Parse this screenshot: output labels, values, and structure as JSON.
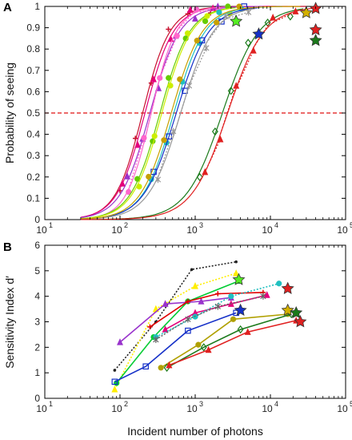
{
  "chart_data": [
    {
      "panel_label": "A",
      "type": "line",
      "xscale": "log",
      "xlim": [
        10,
        100000
      ],
      "ylim": [
        0,
        1
      ],
      "xticks": [
        "10",
        "10",
        "10",
        "10",
        "10"
      ],
      "xtick_exponents": [
        "1",
        "2",
        "3",
        "4",
        "5"
      ],
      "yticks": [
        "0",
        "0.1",
        "0.2",
        "0.3",
        "0.4",
        "0.5",
        "0.6",
        "0.7",
        "0.8",
        "0.9",
        "1"
      ],
      "xlabel": "",
      "ylabel": "Probability of seeing",
      "reference_line": {
        "y": 0.5,
        "color": "#e01010",
        "style": "dashed"
      },
      "series": [
        {
          "color": "#c8102e",
          "x50": 200,
          "slope": 2.4,
          "marker": "plus",
          "endpoint_x": 30000
        },
        {
          "color": "#e4007c",
          "x50": 215,
          "slope": 2.3,
          "marker": "triangle",
          "endpoint_x": 12000
        },
        {
          "color": "#9933cc",
          "x50": 250,
          "slope": 2.2,
          "marker": "triangle",
          "endpoint_x": 8000
        },
        {
          "color": "#ff66cc",
          "x50": 260,
          "slope": 2.6,
          "marker": "circle",
          "endpoint_x": 3000,
          "dotted": true
        },
        {
          "color": "#66cc00",
          "x50": 340,
          "slope": 2.2,
          "marker": "circle",
          "endpoint_x": 3500
        },
        {
          "color": "#ccee00",
          "x50": 360,
          "slope": 2.2,
          "marker": "circle",
          "endpoint_x": 3200
        },
        {
          "color": "#20c0c0",
          "x50": 520,
          "slope": 2.1,
          "marker": "circle",
          "endpoint_x": 15000
        },
        {
          "color": "#1530c8",
          "x50": 560,
          "slope": 2.0,
          "marker": "square",
          "endpoint_x": 7000
        },
        {
          "color": "#999999",
          "x50": 640,
          "slope": 2.0,
          "marker": "star",
          "endpoint_x": 6500,
          "dotted": true
        },
        {
          "color": "#c8a000",
          "x50": 480,
          "slope": 2.1,
          "marker": "circle",
          "endpoint_x": 25000
        },
        {
          "color": "#1b7a1b",
          "x50": 2300,
          "slope": 1.8,
          "marker": "diamond",
          "endpoint_x": 28000
        },
        {
          "color": "#e02020",
          "x50": 2700,
          "slope": 1.8,
          "marker": "triangle",
          "endpoint_x": 40000,
          "dotted": true
        }
      ],
      "endpoint_stars": [
        {
          "x": 40000,
          "y": 0.99,
          "color": "#e02020"
        },
        {
          "x": 30000,
          "y": 0.97,
          "color": "#d4b000"
        },
        {
          "x": 3500,
          "y": 0.93,
          "color": "#55ee22"
        },
        {
          "x": 7000,
          "y": 0.87,
          "color": "#1530c8"
        },
        {
          "x": 40000,
          "y": 0.89,
          "color": "#e02020"
        },
        {
          "x": 40000,
          "y": 0.84,
          "color": "#1b7a1b"
        }
      ]
    },
    {
      "panel_label": "B",
      "type": "line",
      "xscale": "log",
      "xlim": [
        10,
        100000
      ],
      "ylim": [
        0,
        6
      ],
      "xticks": [
        "10",
        "10",
        "10",
        "10",
        "10"
      ],
      "xtick_exponents": [
        "1",
        "2",
        "3",
        "4",
        "5"
      ],
      "yticks": [
        "0",
        "1",
        "2",
        "3",
        "4",
        "5",
        "6"
      ],
      "xlabel": "Incident number of photons",
      "ylabel": "Sensitivity Index d′",
      "series": [
        {
          "color": "#222222",
          "dotted": true,
          "marker": "dot",
          "x": [
            85,
            300,
            900,
            3500
          ],
          "y": [
            1.1,
            3.0,
            5.05,
            5.35
          ]
        },
        {
          "color": "#ffee00",
          "dotted": true,
          "marker": "triangle",
          "x": [
            85,
            300,
            1000,
            3500
          ],
          "y": [
            0.35,
            3.5,
            4.4,
            4.9
          ]
        },
        {
          "color": "#00cc33",
          "marker": "circle",
          "x": [
            90,
            280,
            800,
            3800
          ],
          "y": [
            0.6,
            2.4,
            3.8,
            4.6
          ]
        },
        {
          "color": "#9933cc",
          "marker": "triangle",
          "x": [
            100,
            400,
            1200,
            3000
          ],
          "y": [
            2.2,
            3.7,
            3.8,
            3.95
          ]
        },
        {
          "color": "#e00000",
          "marker": "plus",
          "x": [
            250,
            800,
            2000,
            8000
          ],
          "y": [
            2.8,
            3.8,
            4.1,
            4.15
          ]
        },
        {
          "color": "#e4007c",
          "marker": "triangle",
          "x": [
            400,
            1000,
            3000,
            9000
          ],
          "y": [
            2.7,
            3.35,
            3.7,
            4.05
          ]
        },
        {
          "color": "#20c0c0",
          "dotted": true,
          "marker": "circle",
          "x": [
            300,
            1000,
            3000,
            13000
          ],
          "y": [
            2.4,
            3.2,
            4.0,
            4.5
          ]
        },
        {
          "color": "#666666",
          "dotted": true,
          "marker": "star",
          "x": [
            300,
            800,
            2000,
            8000
          ],
          "y": [
            2.3,
            3.1,
            3.6,
            4.0
          ]
        },
        {
          "color": "#1530c8",
          "marker": "square",
          "x": [
            85,
            220,
            800,
            3500
          ],
          "y": [
            0.65,
            1.25,
            2.65,
            3.35
          ]
        },
        {
          "color": "#b0a000",
          "marker": "circle",
          "x": [
            350,
            1100,
            3200,
            17000
          ],
          "y": [
            1.2,
            2.1,
            3.1,
            3.3
          ]
        },
        {
          "color": "#1b7a1b",
          "marker": "diamond",
          "x": [
            420,
            1300,
            4000,
            19000
          ],
          "y": [
            1.2,
            2.0,
            2.7,
            3.3
          ]
        },
        {
          "color": "#e02020",
          "marker": "triangle",
          "x": [
            450,
            1500,
            5000,
            22000
          ],
          "y": [
            1.3,
            1.9,
            2.6,
            3.05
          ]
        }
      ],
      "endpoint_stars": [
        {
          "x": 3800,
          "y": 4.65,
          "color": "#55ee22"
        },
        {
          "x": 17000,
          "y": 4.3,
          "color": "#e02020"
        },
        {
          "x": 4000,
          "y": 3.45,
          "color": "#1530c8"
        },
        {
          "x": 17000,
          "y": 3.45,
          "color": "#d4b000"
        },
        {
          "x": 22000,
          "y": 3.35,
          "color": "#1b7a1b"
        },
        {
          "x": 25000,
          "y": 3.0,
          "color": "#e02020"
        }
      ]
    }
  ]
}
